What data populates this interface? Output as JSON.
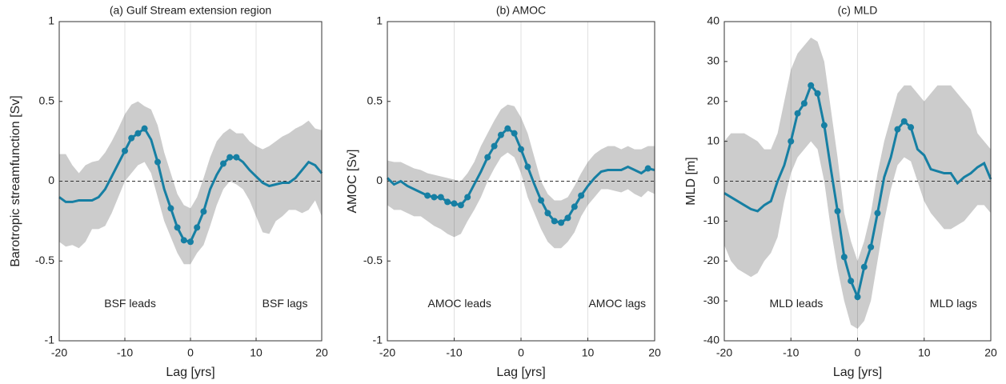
{
  "chart_data": [
    {
      "type": "line",
      "title": "(a) Gulf Stream extension region",
      "xlabel": "Lag [yrs]",
      "ylabel": "Barotropic streamfunction [Sv]",
      "annotations": [
        "BSF leads",
        "BSF lags"
      ],
      "x": [
        -20,
        -19,
        -18,
        -17,
        -16,
        -15,
        -14,
        -13,
        -12,
        -11,
        -10,
        -9,
        -8,
        -7,
        -6,
        -5,
        -4,
        -3,
        -2,
        -1,
        0,
        1,
        2,
        3,
        4,
        5,
        6,
        7,
        8,
        9,
        10,
        11,
        12,
        13,
        14,
        15,
        16,
        17,
        18,
        19,
        20
      ],
      "values": [
        -0.1,
        -0.13,
        -0.13,
        -0.12,
        -0.12,
        -0.12,
        -0.1,
        -0.05,
        0.03,
        0.11,
        0.19,
        0.27,
        0.3,
        0.33,
        0.26,
        0.12,
        -0.05,
        -0.17,
        -0.29,
        -0.37,
        -0.38,
        -0.29,
        -0.19,
        -0.05,
        0.04,
        0.11,
        0.15,
        0.15,
        0.12,
        0.07,
        0.03,
        -0.01,
        -0.03,
        -0.02,
        -0.01,
        -0.01,
        0.02,
        0.07,
        0.12,
        0.1,
        0.05
      ],
      "upper": [
        0.17,
        0.17,
        0.1,
        0.05,
        0.1,
        0.12,
        0.13,
        0.18,
        0.25,
        0.33,
        0.42,
        0.48,
        0.5,
        0.47,
        0.45,
        0.35,
        0.18,
        0.05,
        -0.08,
        -0.15,
        -0.17,
        -0.1,
        0.02,
        0.15,
        0.25,
        0.3,
        0.33,
        0.3,
        0.3,
        0.25,
        0.22,
        0.2,
        0.22,
        0.25,
        0.28,
        0.3,
        0.33,
        0.35,
        0.38,
        0.33,
        0.32
      ],
      "lower": [
        -0.38,
        -0.41,
        -0.4,
        -0.42,
        -0.38,
        -0.3,
        -0.3,
        -0.28,
        -0.2,
        -0.1,
        0.0,
        0.05,
        0.1,
        0.12,
        0.05,
        -0.1,
        -0.25,
        -0.35,
        -0.45,
        -0.52,
        -0.52,
        -0.45,
        -0.4,
        -0.28,
        -0.15,
        -0.05,
        0.0,
        -0.02,
        -0.05,
        -0.12,
        -0.22,
        -0.32,
        -0.33,
        -0.25,
        -0.22,
        -0.18,
        -0.18,
        -0.2,
        -0.18,
        -0.12,
        -0.22
      ],
      "marked_x": [
        -10,
        -9,
        -8,
        -7,
        -5,
        -3,
        -2,
        -1,
        0,
        1,
        2,
        5,
        6,
        7
      ],
      "color": "#167fa3",
      "band_color": "#cccccc",
      "xlim": [
        -20,
        20
      ],
      "xticks": [
        -20,
        -10,
        0,
        10,
        20
      ],
      "ylim": [
        -1,
        1
      ],
      "yticks": [
        -1,
        -0.5,
        0,
        0.5,
        1
      ],
      "grid": true
    },
    {
      "type": "line",
      "title": "(b) AMOC",
      "xlabel": "Lag [yrs]",
      "ylabel": "AMOC [Sv]",
      "annotations": [
        "AMOC leads",
        "AMOC lags"
      ],
      "x": [
        -20,
        -19,
        -18,
        -17,
        -16,
        -15,
        -14,
        -13,
        -12,
        -11,
        -10,
        -9,
        -8,
        -7,
        -6,
        -5,
        -4,
        -3,
        -2,
        -1,
        0,
        1,
        2,
        3,
        4,
        5,
        6,
        7,
        8,
        9,
        10,
        11,
        12,
        13,
        14,
        15,
        16,
        17,
        18,
        19,
        20
      ],
      "values": [
        0.02,
        -0.02,
        0.0,
        -0.03,
        -0.05,
        -0.07,
        -0.09,
        -0.1,
        -0.1,
        -0.13,
        -0.14,
        -0.15,
        -0.1,
        -0.02,
        0.06,
        0.15,
        0.22,
        0.29,
        0.33,
        0.3,
        0.2,
        0.09,
        -0.02,
        -0.12,
        -0.2,
        -0.25,
        -0.26,
        -0.23,
        -0.16,
        -0.09,
        -0.03,
        0.02,
        0.06,
        0.07,
        0.07,
        0.07,
        0.09,
        0.07,
        0.05,
        0.08,
        0.07
      ],
      "upper": [
        0.13,
        0.12,
        0.12,
        0.1,
        0.08,
        0.07,
        0.05,
        0.04,
        0.03,
        0.02,
        0.01,
        0.0,
        0.05,
        0.12,
        0.22,
        0.3,
        0.38,
        0.45,
        0.48,
        0.47,
        0.4,
        0.3,
        0.15,
        0.0,
        -0.08,
        -0.12,
        -0.12,
        -0.1,
        -0.03,
        0.05,
        0.12,
        0.17,
        0.2,
        0.22,
        0.22,
        0.2,
        0.22,
        0.2,
        0.2,
        0.22,
        0.22
      ],
      "lower": [
        -0.15,
        -0.18,
        -0.18,
        -0.2,
        -0.22,
        -0.22,
        -0.25,
        -0.28,
        -0.3,
        -0.33,
        -0.35,
        -0.33,
        -0.25,
        -0.18,
        -0.1,
        0.0,
        0.08,
        0.15,
        0.18,
        0.15,
        0.05,
        -0.1,
        -0.2,
        -0.3,
        -0.38,
        -0.42,
        -0.42,
        -0.38,
        -0.32,
        -0.22,
        -0.15,
        -0.1,
        -0.05,
        -0.05,
        -0.06,
        -0.07,
        -0.05,
        -0.08,
        -0.1,
        -0.06,
        -0.08
      ],
      "marked_x": [
        -14,
        -13,
        -12,
        -11,
        -10,
        -9,
        -8,
        -5,
        -4,
        -3,
        -2,
        -1,
        0,
        1,
        3,
        4,
        5,
        6,
        7,
        8,
        9,
        19
      ],
      "color": "#167fa3",
      "band_color": "#cccccc",
      "xlim": [
        -20,
        20
      ],
      "xticks": [
        -20,
        -10,
        0,
        10,
        20
      ],
      "ylim": [
        -1,
        1
      ],
      "yticks": [
        -1,
        -0.5,
        0,
        0.5,
        1
      ],
      "grid": true
    },
    {
      "type": "line",
      "title": "(c) MLD",
      "xlabel": "Lag [yrs]",
      "ylabel": "MLD [m]",
      "annotations": [
        "MLD leads",
        "MLD lags"
      ],
      "x": [
        -20,
        -19,
        -18,
        -17,
        -16,
        -15,
        -14,
        -13,
        -12,
        -11,
        -10,
        -9,
        -8,
        -7,
        -6,
        -5,
        -4,
        -3,
        -2,
        -1,
        0,
        1,
        2,
        3,
        4,
        5,
        6,
        7,
        8,
        9,
        10,
        11,
        12,
        13,
        14,
        15,
        16,
        17,
        18,
        19,
        20
      ],
      "values": [
        -3,
        -4,
        -5,
        -6,
        -7,
        -7.5,
        -6,
        -5,
        0,
        4,
        10,
        17,
        19.5,
        24,
        22,
        14,
        3,
        -7.5,
        -19,
        -25,
        -29,
        -21.5,
        -16.5,
        -8,
        1,
        6,
        13,
        15,
        13.5,
        8,
        6.5,
        3,
        2.5,
        2,
        2,
        -0.5,
        1,
        2,
        3.5,
        4.5,
        0.5
      ],
      "upper": [
        10,
        12,
        12,
        12,
        11,
        10,
        8,
        8,
        12,
        20,
        28,
        32,
        34,
        36,
        35,
        30,
        18,
        6,
        -8,
        -15,
        -20,
        -15,
        -8,
        2,
        10,
        16,
        22,
        24,
        24,
        22,
        20,
        22,
        24,
        24,
        24,
        22,
        20,
        18,
        12,
        10,
        8
      ],
      "lower": [
        -16,
        -20,
        -22,
        -23,
        -24,
        -23,
        -20,
        -18,
        -14,
        -5,
        2,
        6,
        8,
        10,
        8,
        0,
        -12,
        -22,
        -30,
        -36,
        -37,
        -35,
        -30,
        -20,
        -10,
        -2,
        4,
        6,
        5,
        0,
        -5,
        -8,
        -10,
        -12,
        -12,
        -11,
        -10,
        -8,
        -6,
        -6,
        -8
      ],
      "marked_x": [
        -10,
        -9,
        -8,
        -7,
        -6,
        -5,
        -3,
        -2,
        -1,
        0,
        1,
        2,
        3,
        6,
        7,
        8
      ],
      "color": "#167fa3",
      "band_color": "#cccccc",
      "xlim": [
        -20,
        20
      ],
      "xticks": [
        -20,
        -10,
        0,
        10,
        20
      ],
      "ylim": [
        -40,
        40
      ],
      "yticks": [
        -40,
        -30,
        -20,
        -10,
        0,
        10,
        20,
        30,
        40
      ],
      "grid": true
    }
  ]
}
